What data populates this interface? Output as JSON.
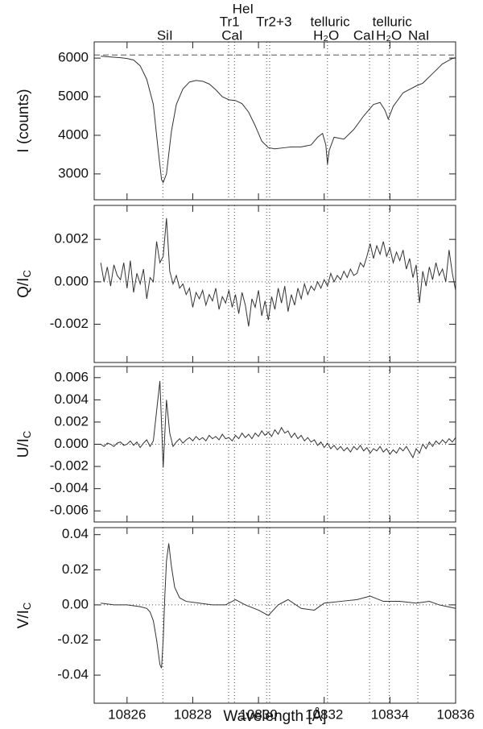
{
  "chart_data": [
    {
      "type": "line",
      "ylabel": "I (counts)",
      "color": "#333333",
      "xlim": [
        10825,
        10836
      ],
      "ylim": [
        2330,
        6420
      ],
      "xticks": [
        10826,
        10828,
        10830,
        10832,
        10834,
        10836
      ],
      "yticks": [
        3000,
        4000,
        5000,
        6000
      ],
      "hline": 6080,
      "vlines": [
        10827.09,
        10829.09,
        10829.27,
        10830.25,
        10830.34,
        10832.1,
        10833.38,
        10833.98,
        10834.85
      ],
      "annotations": [
        {
          "text": "SiI",
          "x": 10827.15
        },
        {
          "text": "Tr1",
          "x": 10829.12
        },
        {
          "text": "CaI",
          "x": 10829.2
        },
        {
          "text": "HeI",
          "x": 10829.53
        },
        {
          "text": "Tr2+3",
          "x": 10830.47
        },
        {
          "text": "telluric",
          "x": 10832.18
        },
        {
          "text": "H₂O",
          "x": 10832.06
        },
        {
          "text": "CaI",
          "x": 10833.21
        },
        {
          "text": "telluric",
          "x": 10834.07
        },
        {
          "text": "H₂O",
          "x": 10833.97
        },
        {
          "text": "NaI",
          "x": 10834.88
        }
      ],
      "x": [
        10825.2,
        10825.5,
        10825.8,
        10826.0,
        10826.2,
        10826.4,
        10826.6,
        10826.8,
        10826.95,
        10827.05,
        10827.1,
        10827.2,
        10827.35,
        10827.5,
        10827.7,
        10827.9,
        10828.1,
        10828.3,
        10828.5,
        10828.7,
        10828.9,
        10829.1,
        10829.3,
        10829.5,
        10829.7,
        10829.9,
        10830.1,
        10830.3,
        10830.5,
        10830.8,
        10831.0,
        10831.3,
        10831.6,
        10831.8,
        10831.95,
        10832.05,
        10832.1,
        10832.15,
        10832.3,
        10832.6,
        10832.9,
        10833.2,
        10833.5,
        10833.7,
        10833.85,
        10833.95,
        10834.1,
        10834.4,
        10834.8,
        10835.0,
        10835.3,
        10835.6,
        10835.9,
        10836.0
      ],
      "values": [
        6050,
        6030,
        6010,
        5990,
        5950,
        5800,
        5450,
        4800,
        3600,
        2850,
        2780,
        3000,
        4100,
        4800,
        5200,
        5380,
        5420,
        5400,
        5330,
        5180,
        5000,
        4920,
        4900,
        4820,
        4600,
        4250,
        3850,
        3680,
        3650,
        3680,
        3700,
        3700,
        3750,
        3950,
        4050,
        3750,
        3250,
        3600,
        3950,
        3900,
        4150,
        4500,
        4800,
        4850,
        4650,
        4420,
        4750,
        5100,
        5280,
        5350,
        5600,
        5850,
        5990,
        6010
      ]
    },
    {
      "type": "line",
      "ylabel": "Q/I",
      "ylabel_sub": "C",
      "color": "#333333",
      "xlim": [
        10825,
        10836
      ],
      "ylim": [
        -0.0038,
        0.0036
      ],
      "xticks": [
        10826,
        10828,
        10830,
        10832,
        10834,
        10836
      ],
      "yticks": [
        -0.002,
        {
          "value": 0,
          "label": "0.000"
        },
        0.002
      ],
      "hline": 0,
      "vlines": [
        10827.09,
        10829.09,
        10829.27,
        10830.25,
        10830.34,
        10832.1,
        10833.38,
        10833.98,
        10834.85
      ],
      "x": [
        10825.2,
        10825.3,
        10825.4,
        10825.5,
        10825.6,
        10825.7,
        10825.8,
        10825.9,
        10826.0,
        10826.1,
        10826.2,
        10826.3,
        10826.4,
        10826.5,
        10826.6,
        10826.7,
        10826.8,
        10826.9,
        10827.0,
        10827.1,
        10827.2,
        10827.3,
        10827.4,
        10827.5,
        10827.6,
        10827.7,
        10827.8,
        10827.9,
        10828.0,
        10828.1,
        10828.2,
        10828.3,
        10828.4,
        10828.5,
        10828.6,
        10828.7,
        10828.8,
        10828.9,
        10829.0,
        10829.1,
        10829.2,
        10829.3,
        10829.4,
        10829.5,
        10829.6,
        10829.7,
        10829.8,
        10829.9,
        10830.0,
        10830.1,
        10830.2,
        10830.3,
        10830.4,
        10830.5,
        10830.6,
        10830.7,
        10830.8,
        10830.9,
        10831.0,
        10831.1,
        10831.2,
        10831.3,
        10831.4,
        10831.5,
        10831.6,
        10831.7,
        10831.8,
        10831.9,
        10832.0,
        10832.1,
        10832.2,
        10832.3,
        10832.4,
        10832.5,
        10832.6,
        10832.7,
        10832.8,
        10832.9,
        10833.0,
        10833.1,
        10833.2,
        10833.3,
        10833.4,
        10833.5,
        10833.6,
        10833.7,
        10833.8,
        10833.9,
        10834.0,
        10834.1,
        10834.2,
        10834.3,
        10834.4,
        10834.5,
        10834.6,
        10834.7,
        10834.8,
        10834.9,
        10835.0,
        10835.1,
        10835.2,
        10835.3,
        10835.4,
        10835.5,
        10835.6,
        10835.7,
        10835.8,
        10835.9,
        10836.0
      ],
      "values": [
        0.0009,
        0,
        0.0007,
        -0.0002,
        0.0008,
        0.0003,
        0.0001,
        0.0009,
        -0.0003,
        0.001,
        -0.0005,
        0.0004,
        -0.0001,
        0.0006,
        -0.0008,
        0.0002,
        0,
        0.0019,
        0.0009,
        0.0012,
        0.003,
        0.0005,
        -0.0001,
        0.0003,
        -0.0003,
        -0.0001,
        -0.0006,
        -0.0003,
        -0.0012,
        -0.0005,
        -0.0008,
        -0.0004,
        -0.0011,
        -0.0006,
        -0.0009,
        -0.0003,
        -0.0013,
        -0.0007,
        -0.001,
        -0.0004,
        -0.0012,
        -0.0006,
        -0.0015,
        -0.0005,
        -0.0011,
        -0.0021,
        -0.0008,
        -0.0012,
        -0.0004,
        -0.0016,
        -0.0009,
        -0.0018,
        -0.0007,
        -0.0013,
        -0.0003,
        -0.001,
        -0.0002,
        -0.0014,
        -0.0006,
        -0.0011,
        -0.0003,
        -0.0008,
        -0.0001,
        -0.0006,
        -0.0002,
        -0.0004,
        0,
        -0.0003,
        0.0001,
        -0.0002,
        0.0004,
        0,
        0.0003,
        0.0001,
        0.0005,
        0.0002,
        0.0006,
        0.0003,
        0.0004,
        0.0009,
        0.0007,
        0.0012,
        0.0018,
        0.0011,
        0.0017,
        0.0013,
        0.0019,
        0.0012,
        0.0016,
        0.0009,
        0.0014,
        0.001,
        0.0015,
        0.0006,
        0.0011,
        0.0002,
        0.0008,
        -0.001,
        0.0005,
        -0.0002,
        0.0007,
        0.0001,
        0.0009,
        0.0003,
        0.0006,
        0,
        0.0015,
        0.0004,
        -0.0004
      ]
    },
    {
      "type": "line",
      "ylabel": "U/I",
      "ylabel_sub": "C",
      "color": "#333333",
      "xlim": [
        10825,
        10836
      ],
      "ylim": [
        -0.007,
        0.007
      ],
      "xticks": [
        10826,
        10828,
        10830,
        10832,
        10834,
        10836
      ],
      "yticks": [
        -0.006,
        -0.004,
        -0.002,
        {
          "value": 0,
          "label": "0.000"
        },
        0.002,
        0.004,
        0.006
      ],
      "hline": 0,
      "vlines": [
        10827.09,
        10829.09,
        10829.27,
        10830.25,
        10830.34,
        10832.1,
        10833.38,
        10833.98,
        10834.85
      ],
      "x": [
        10825.2,
        10825.3,
        10825.4,
        10825.5,
        10825.6,
        10825.7,
        10825.8,
        10825.9,
        10826.0,
        10826.1,
        10826.2,
        10826.3,
        10826.4,
        10826.5,
        10826.6,
        10826.7,
        10826.8,
        10826.9,
        10827.0,
        10827.1,
        10827.2,
        10827.3,
        10827.4,
        10827.5,
        10827.6,
        10827.7,
        10827.8,
        10827.9,
        10828.0,
        10828.1,
        10828.2,
        10828.3,
        10828.4,
        10828.5,
        10828.6,
        10828.7,
        10828.8,
        10828.9,
        10829.0,
        10829.1,
        10829.2,
        10829.3,
        10829.4,
        10829.5,
        10829.6,
        10829.7,
        10829.8,
        10829.9,
        10830.0,
        10830.1,
        10830.2,
        10830.3,
        10830.4,
        10830.5,
        10830.6,
        10830.7,
        10830.8,
        10830.9,
        10831.0,
        10831.1,
        10831.2,
        10831.3,
        10831.4,
        10831.5,
        10831.6,
        10831.7,
        10831.8,
        10831.9,
        10832.0,
        10832.1,
        10832.2,
        10832.3,
        10832.4,
        10832.5,
        10832.6,
        10832.7,
        10832.8,
        10832.9,
        10833.0,
        10833.1,
        10833.2,
        10833.3,
        10833.4,
        10833.5,
        10833.6,
        10833.7,
        10833.8,
        10833.9,
        10834.0,
        10834.1,
        10834.2,
        10834.3,
        10834.4,
        10834.5,
        10834.6,
        10834.7,
        10834.8,
        10834.9,
        10835.0,
        10835.1,
        10835.2,
        10835.3,
        10835.4,
        10835.5,
        10835.6,
        10835.7,
        10835.8,
        10835.9,
        10836.0
      ],
      "values": [
        0,
        -0.0002,
        0.0001,
        0,
        -0.0002,
        0.0001,
        0.0002,
        -0.0001,
        0,
        0.0003,
        -0.0001,
        0.0002,
        -0.0003,
        0.0001,
        0.0004,
        -0.0002,
        0.0003,
        0.003,
        0.0057,
        -0.0021,
        0.004,
        0.001,
        -0.0002,
        0.0002,
        0.0005,
        0.0001,
        0.0004,
        0.0006,
        0.0003,
        0.0007,
        0.0004,
        0.0006,
        0.0003,
        0.0008,
        0.0005,
        0.0007,
        0.0004,
        0.0009,
        0.0005,
        0.0006,
        0.0003,
        0.0008,
        0.0005,
        0.001,
        0.0006,
        0.0009,
        0.0005,
        0.001,
        0.0007,
        0.0012,
        0.0008,
        0.0011,
        0.0007,
        0.0013,
        0.0009,
        0.0015,
        0.001,
        0.0012,
        0.0006,
        0.001,
        0.0005,
        0.0008,
        0.0003,
        0.0006,
        0.0002,
        0.0004,
        -0.0001,
        0.0002,
        -0.0003,
        0.0001,
        -0.0004,
        -0.0001,
        -0.0005,
        -0.0002,
        -0.0006,
        -0.0003,
        -0.0007,
        -0.0002,
        -0.0005,
        -0.0001,
        -0.0006,
        -0.0003,
        -0.0008,
        -0.0004,
        -0.0006,
        -0.0002,
        -0.0007,
        -0.0004,
        -0.0009,
        -0.0005,
        -0.0008,
        -0.0003,
        -0.0006,
        -0.0002,
        -0.0007,
        -0.0012,
        -0.0004,
        -0.0008,
        0,
        -0.0004,
        0.0002,
        -0.0002,
        0.0003,
        0,
        0.0004,
        0.0001,
        0.0005,
        0.0002,
        0.0006
      ]
    },
    {
      "type": "line",
      "ylabel": "V/I",
      "ylabel_sub": "C",
      "xlabel": "Wavelength [Å]",
      "color": "#333333",
      "xlim": [
        10825,
        10836
      ],
      "ylim": [
        -0.056,
        0.044
      ],
      "xticks": [
        10826,
        10828,
        10830,
        10832,
        10834,
        10836
      ],
      "yticks": [
        -0.04,
        -0.02,
        {
          "value": 0,
          "label": "0.00"
        },
        0.02,
        0.04
      ],
      "hline": 0,
      "vlines": [
        10827.09,
        10829.09,
        10829.27,
        10830.25,
        10830.34,
        10832.1,
        10833.38,
        10833.98,
        10834.85
      ],
      "x": [
        10825.2,
        10825.6,
        10826.0,
        10826.4,
        10826.6,
        10826.7,
        10826.8,
        10826.9,
        10827.0,
        10827.05,
        10827.1,
        10827.15,
        10827.2,
        10827.27,
        10827.35,
        10827.45,
        10827.6,
        10827.8,
        10828.2,
        10828.6,
        10829.0,
        10829.3,
        10829.6,
        10830.0,
        10830.3,
        10830.6,
        10830.9,
        10831.3,
        10831.7,
        10832.0,
        10832.5,
        10833.0,
        10833.4,
        10833.8,
        10834.3,
        10834.8,
        10835.2,
        10835.5,
        10836.0
      ],
      "values": [
        0.001,
        0,
        0,
        -0.001,
        -0.002,
        -0.004,
        -0.009,
        -0.02,
        -0.034,
        -0.036,
        -0.02,
        0.005,
        0.025,
        0.035,
        0.022,
        0.01,
        0.004,
        0.002,
        0.001,
        0,
        0,
        0.003,
        0,
        -0.003,
        -0.006,
        0,
        0.003,
        -0.002,
        -0.003,
        0.001,
        0.002,
        0.003,
        0.005,
        0.002,
        0.002,
        0.001,
        0.002,
        0,
        -0.002
      ]
    }
  ]
}
